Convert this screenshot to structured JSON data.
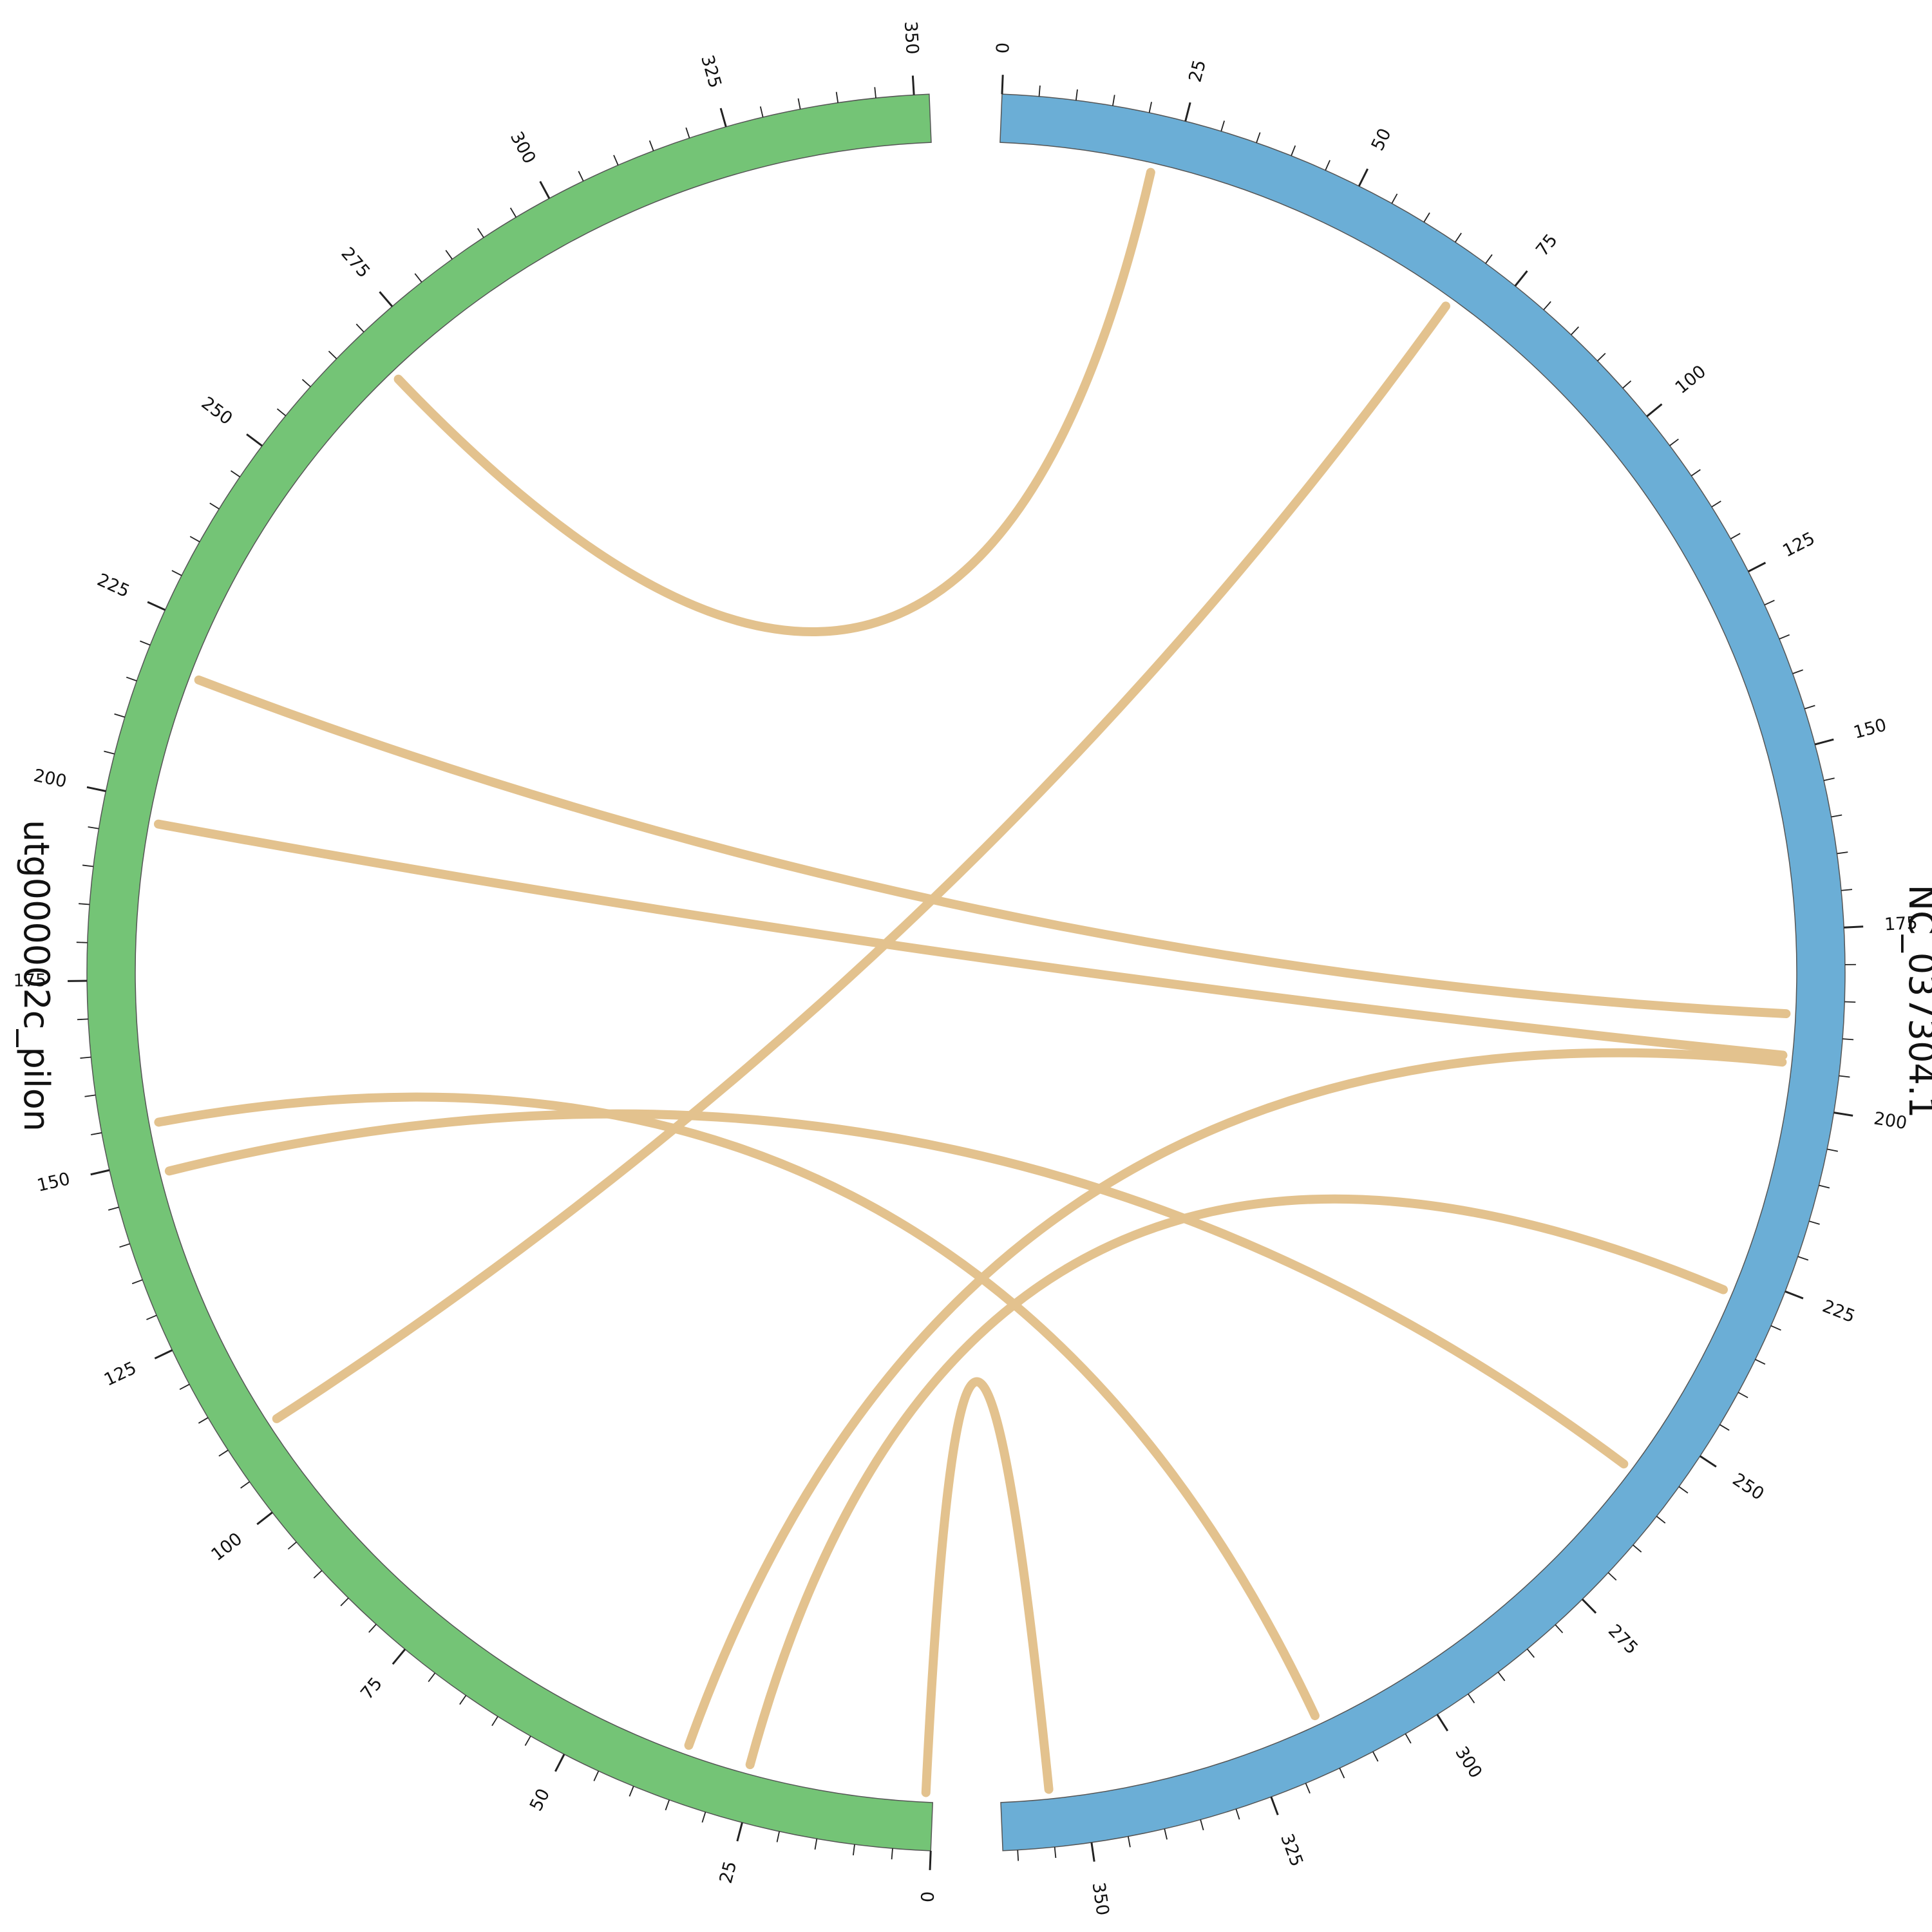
{
  "chart_data": {
    "type": "chord",
    "title": "",
    "tick_step": 25,
    "minor_tick_step": 5,
    "segments": [
      {
        "id": "ref",
        "name": "NC_037304.1",
        "length": 362,
        "color": "#6baed6",
        "ticks": [
          "0",
          "25",
          "50",
          "75",
          "100",
          "125",
          "150",
          "175",
          "200",
          "225",
          "250",
          "275",
          "300",
          "325",
          "350"
        ]
      },
      {
        "id": "asm",
        "name": "utg000002c_pilon",
        "length": 352,
        "color": "#74c476",
        "ticks": [
          "0",
          "25",
          "50",
          "75",
          "100",
          "125",
          "150",
          "175",
          "200",
          "225",
          "250",
          "275",
          "300",
          "325",
          "350"
        ]
      }
    ],
    "links_color": "#e3c28e",
    "links": [
      {
        "from": [
          "ref",
          22
        ],
        "to": [
          "asm",
          269
        ]
      },
      {
        "from": [
          "ref",
          69
        ],
        "to": [
          "asm",
          110
        ]
      },
      {
        "from": [
          "ref",
          187
        ],
        "to": [
          "asm",
          218
        ]
      },
      {
        "from": [
          "ref",
          193
        ],
        "to": [
          "asm",
          197
        ]
      },
      {
        "from": [
          "ref",
          194
        ],
        "to": [
          "asm",
          35
        ]
      },
      {
        "from": [
          "ref",
          228
        ],
        "to": [
          "asm",
          26
        ]
      },
      {
        "from": [
          "ref",
          257
        ],
        "to": [
          "asm",
          148
        ]
      },
      {
        "from": [
          "ref",
          315
        ],
        "to": [
          "asm",
          155
        ]
      },
      {
        "from": [
          "ref",
          355
        ],
        "to": [
          "asm",
          1
        ]
      }
    ]
  }
}
